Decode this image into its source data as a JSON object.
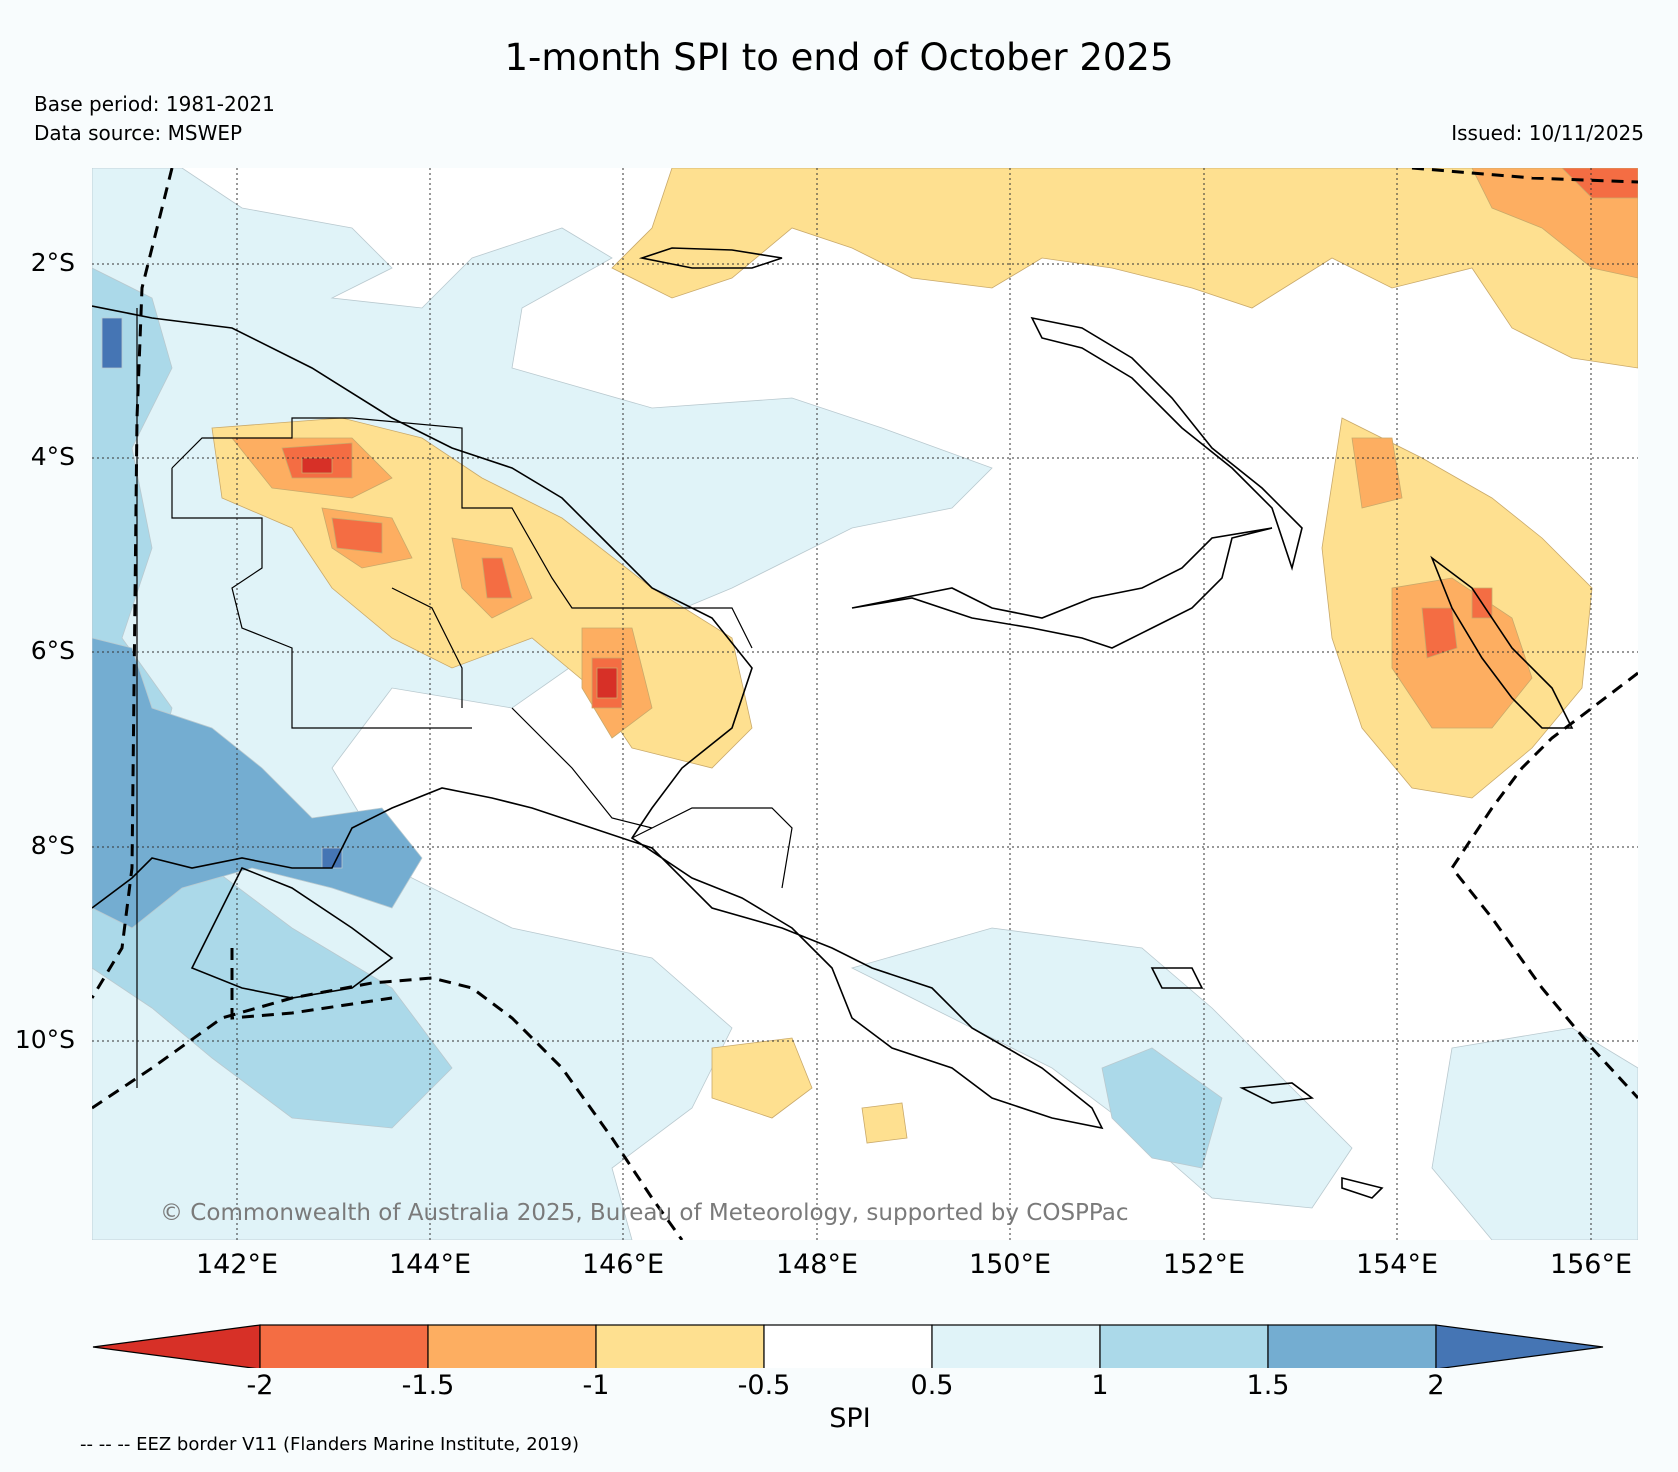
{
  "header": {
    "title": "1-month SPI to end of October 2025",
    "base_period": "Base period: 1981-2021",
    "data_source": "Data source: MSWEP",
    "issued": "Issued: 10/11/2025"
  },
  "map": {
    "lat_labels": [
      "2°S",
      "4°S",
      "6°S",
      "8°S",
      "10°S"
    ],
    "lon_labels": [
      "142°E",
      "144°E",
      "146°E",
      "148°E",
      "150°E",
      "152°E",
      "154°E",
      "156°E"
    ],
    "copyright": "© Commonwealth of Australia 2025, Bureau of Meteorology, supported by COSPPac",
    "colors": {
      "land_line": "#000000",
      "eez": "#000000",
      "grid": "#333333"
    }
  },
  "colorbar": {
    "label": "SPI",
    "ticks": [
      "-2",
      "-1.5",
      "-1",
      "-0.5",
      "0.5",
      "1",
      "1.5",
      "2"
    ],
    "bins": [
      {
        "color": "#d73027"
      },
      {
        "color": "#f46d43"
      },
      {
        "color": "#fdae61"
      },
      {
        "color": "#fee090"
      },
      {
        "color": "#ffffff"
      },
      {
        "color": "#e0f3f8"
      },
      {
        "color": "#abd9e9"
      },
      {
        "color": "#74add1"
      },
      {
        "color": "#4575b4"
      }
    ]
  },
  "footer": {
    "eez_note": "-- -- -- EEZ border V11 (Flanders Marine Institute, 2019)"
  }
}
